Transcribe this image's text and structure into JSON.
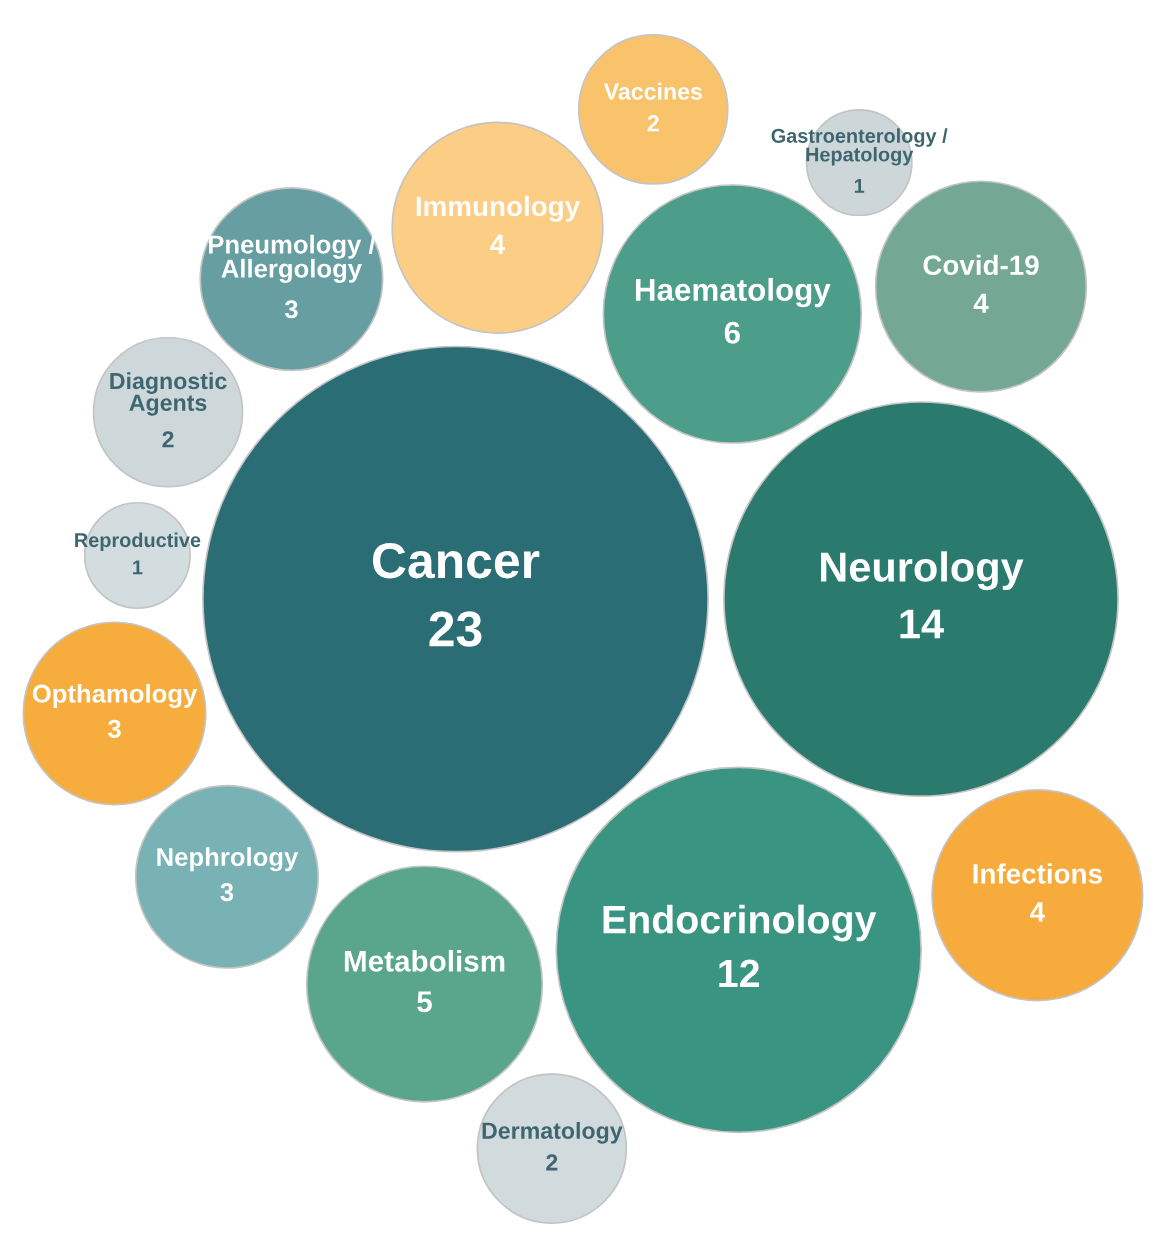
{
  "chart_data": {
    "type": "other",
    "categories": [
      "Cancer",
      "Neurology",
      "Endocrinology",
      "Haematology",
      "Metabolism",
      "Infections",
      "Immunology",
      "Covid-19",
      "Nephrology",
      "Pneumology / Allergology",
      "Opthamology",
      "Diagnostic Agents",
      "Dermatology",
      "Vaccines",
      "Reproductive",
      "Gastroenterology / Hepatology"
    ],
    "values": [
      23,
      14,
      12,
      6,
      5,
      4,
      4,
      4,
      3,
      3,
      3,
      2,
      2,
      2,
      1,
      1
    ],
    "colors": [
      "#2b6d75",
      "#2a7b6e",
      "#3a9482",
      "#4c9d89",
      "#5aa68c",
      "#f7ab3c",
      "#fccd84",
      "#74a895",
      "#78b2b4",
      "#679ea2",
      "#f6ad3e",
      "#ced8da",
      "#d1dadc",
      "#f9c36b",
      "#d3dcde",
      "#cdd6d9"
    ],
    "data_labels": true
  }
}
